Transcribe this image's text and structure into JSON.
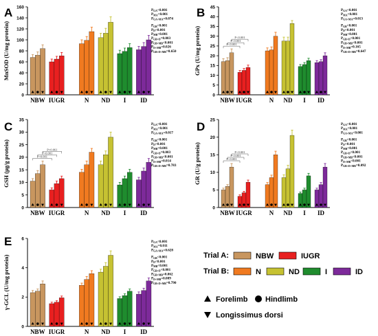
{
  "colors": {
    "NBW": "#c8965f",
    "IUGR": "#e82020",
    "N": "#f07a20",
    "ND": "#c6c232",
    "I": "#1f8c2e",
    "ID": "#7d2a9a"
  },
  "legend": {
    "trialA_label": "Trial A:",
    "trialB_label": "Trial B:",
    "NBW": "NBW",
    "IUGR": "IUGR",
    "N": "N",
    "ND": "ND",
    "I": "I",
    "ID": "ID",
    "forelimb": "Forelimb",
    "hindlimb": "Hindlimb",
    "longissimus": "Longissimus dorsi"
  },
  "chart_data": [
    {
      "panel": "A",
      "type": "bar",
      "ylabel": "MnSOD (U/mg protein)",
      "ylim": [
        0,
        160
      ],
      "yticks": [
        0,
        20,
        40,
        60,
        80,
        100,
        120,
        140,
        160
      ],
      "groups": [
        "NBW",
        "IUGR",
        "N",
        "ND",
        "I",
        "ID"
      ],
      "group_labels": [
        "NBW",
        "IUGR",
        "N",
        "ND",
        "I",
        "ID"
      ],
      "tissues": [
        "Forelimb",
        "Hindlimb",
        "Longissimus dorsi"
      ],
      "values": [
        [
          68,
          72,
          84
        ],
        [
          60,
          65,
          71
        ],
        [
          93,
          99,
          115
        ],
        [
          104,
          112,
          132
        ],
        [
          75,
          79,
          86
        ],
        [
          82,
          88,
          100
        ]
      ],
      "errors": [
        [
          5,
          6,
          7
        ],
        [
          5,
          5,
          6
        ],
        [
          7,
          7,
          8
        ],
        [
          8,
          9,
          10
        ],
        [
          6,
          6,
          7
        ],
        [
          6,
          7,
          8
        ]
      ],
      "stats_a": [
        "PGA<0.001",
        "PMA<0.001",
        "PGA×MA=0.074"
      ],
      "stats_b": [
        "PGB<0.001",
        "PD<0.001",
        "PMB<0.001",
        "PGB×D=0.003",
        "PGB×MB<0.001",
        "PD×MB=0.026",
        "PGB×D×MB=0.650"
      ],
      "sig_brackets": []
    },
    {
      "panel": "B",
      "type": "bar",
      "ylabel": "GPx (U/mg protein)",
      "ylim": [
        0,
        45
      ],
      "yticks": [
        0,
        5,
        10,
        15,
        20,
        25,
        30,
        35,
        40,
        45
      ],
      "groups": [
        "NBW",
        "IUGR",
        "N",
        "ND",
        "I",
        "ID"
      ],
      "group_labels": [
        "NBW",
        "IUGR",
        "N",
        "ND",
        "I",
        "ID"
      ],
      "tissues": [
        "Forelimb",
        "Hindlimb",
        "Longissimus dorsi"
      ],
      "values": [
        [
          17,
          17.5,
          21.5
        ],
        [
          11.5,
          12.5,
          14
        ],
        [
          22.5,
          23,
          30
        ],
        [
          27.5,
          27.5,
          36.5
        ],
        [
          14.5,
          15.5,
          17.5
        ],
        [
          16.5,
          17,
          20
        ]
      ],
      "errors": [
        [
          1.5,
          1.5,
          2
        ],
        [
          1,
          1,
          1.2
        ],
        [
          1.5,
          1.5,
          2
        ],
        [
          2,
          2,
          1.5
        ],
        [
          1,
          1,
          1.2
        ],
        [
          1,
          1,
          1.5
        ]
      ],
      "stats_a": [
        "PGA<0.001",
        "PMA<0.001",
        "PGA×MA=0.013"
      ],
      "stats_b": [
        "PGB<0.001",
        "PD<0.001",
        "PMB<0.001",
        "PGB×D<0.001",
        "PGB×MB<0.001",
        "PD×MB=0.165",
        "PGB×D×MB=0.647"
      ],
      "sig_brackets": [
        "P<0.001",
        "P<0.001",
        "P<0.001"
      ]
    },
    {
      "panel": "C",
      "type": "bar",
      "ylabel": "GSH (μg/g protein)",
      "ylim": [
        0,
        35
      ],
      "yticks": [
        0,
        5,
        10,
        15,
        20,
        25,
        30,
        35
      ],
      "groups": [
        "NBW",
        "IUGR",
        "N",
        "ND",
        "I",
        "ID"
      ],
      "group_labels": [
        "NBW",
        "IUGR",
        "N",
        "ND",
        "I",
        "ID"
      ],
      "tissues": [
        "Forelimb",
        "Hindlimb",
        "Longissimus dorsi"
      ],
      "values": [
        [
          10.5,
          13.5,
          17
        ],
        [
          7,
          9.5,
          11.5
        ],
        [
          14,
          17,
          22
        ],
        [
          17,
          21,
          28
        ],
        [
          9,
          11.5,
          14
        ],
        [
          11,
          14.5,
          18
        ]
      ],
      "errors": [
        [
          1,
          1.2,
          1.5
        ],
        [
          0.8,
          1,
          1
        ],
        [
          1.2,
          1.5,
          1.5
        ],
        [
          1.5,
          1.5,
          2
        ],
        [
          1,
          1,
          1.2
        ],
        [
          1,
          1.2,
          1.5
        ]
      ],
      "stats_a": [
        "PGA<0.001",
        "PMA<0.001",
        "PGA×MA=0.017"
      ],
      "stats_b": [
        "PGB<0.001",
        "PD<0.001",
        "PMB<0.001",
        "PGB×D=0.003",
        "PGB×MB<0.001",
        "PD×MB=0.014",
        "PGB×D×MB=0.783"
      ],
      "sig_brackets": [
        "P=0.001",
        "P<0.001",
        "P=0.061"
      ]
    },
    {
      "panel": "D",
      "type": "bar",
      "ylabel": "GR (U/g protein)",
      "ylim": [
        0,
        25
      ],
      "yticks": [
        0,
        5,
        10,
        15,
        20,
        25
      ],
      "groups": [
        "NBW",
        "IUGR",
        "N",
        "ND",
        "I",
        "ID"
      ],
      "group_labels": [
        "NBW",
        "IUGR",
        "N",
        "ND",
        "I",
        "ID"
      ],
      "tissues": [
        "Forelimb",
        "Hindlimb",
        "Longissimus dorsi"
      ],
      "values": [
        [
          5,
          6,
          11.5
        ],
        [
          3.2,
          4.2,
          7.2
        ],
        [
          6.5,
          8.5,
          15
        ],
        [
          8.5,
          11,
          20.5
        ],
        [
          4,
          5,
          9
        ],
        [
          5,
          6.5,
          11.5
        ]
      ],
      "errors": [
        [
          0.5,
          0.5,
          1
        ],
        [
          0.4,
          0.4,
          0.6
        ],
        [
          0.6,
          0.7,
          1
        ],
        [
          0.8,
          1,
          1.5
        ],
        [
          0.4,
          0.5,
          0.7
        ],
        [
          0.5,
          0.6,
          1
        ]
      ],
      "stats_a": [
        "PGA<0.001",
        "PMA<0.001",
        "PGA×MA<0.001"
      ],
      "stats_b": [
        "PGB<0.001",
        "PD<0.001",
        "PMB<0.001",
        "PGB×D<0.001",
        "PGB×MB<0.001",
        "PD×MB<0.001",
        "PGB×D×MB=0.092"
      ],
      "sig_brackets": [
        "P<0.001",
        "P<0.001",
        "P<0.001"
      ]
    },
    {
      "panel": "E",
      "type": "bar",
      "ylabel": "γ-GCL (U/mg protein)",
      "ylim": [
        0,
        6
      ],
      "yticks": [
        0,
        2,
        4,
        6
      ],
      "groups": [
        "NBW",
        "IUGR",
        "N",
        "ND",
        "I",
        "ID"
      ],
      "group_labels": [
        "NBW",
        "IUGR",
        "N",
        "ND",
        "I",
        "ID"
      ],
      "tissues": [
        "Forelimb",
        "Hindlimb",
        "Longissimus dorsi"
      ],
      "values": [
        [
          2.3,
          2.4,
          2.9
        ],
        [
          1.55,
          1.65,
          1.95
        ],
        [
          2.8,
          3.2,
          3.6
        ],
        [
          3.7,
          4.1,
          4.85
        ],
        [
          1.9,
          2.1,
          2.4
        ],
        [
          2.2,
          2.45,
          3.1
        ]
      ],
      "errors": [
        [
          0.15,
          0.15,
          0.2
        ],
        [
          0.1,
          0.1,
          0.12
        ],
        [
          0.15,
          0.2,
          0.2
        ],
        [
          0.2,
          0.25,
          0.3
        ],
        [
          0.12,
          0.12,
          0.15
        ],
        [
          0.15,
          0.15,
          0.2
        ]
      ],
      "stats_a": [
        "PGA<0.001",
        "PMA=0.011",
        "PGA×MA=0.628"
      ],
      "stats_b": [
        "PGB<0.001",
        "PD<0.001",
        "PMB<0.001",
        "PGB×D<0.001",
        "PGB×MB=0.062",
        "PD×MB=0.089",
        "PGB×D×MB=0.790"
      ],
      "sig_brackets": []
    }
  ]
}
